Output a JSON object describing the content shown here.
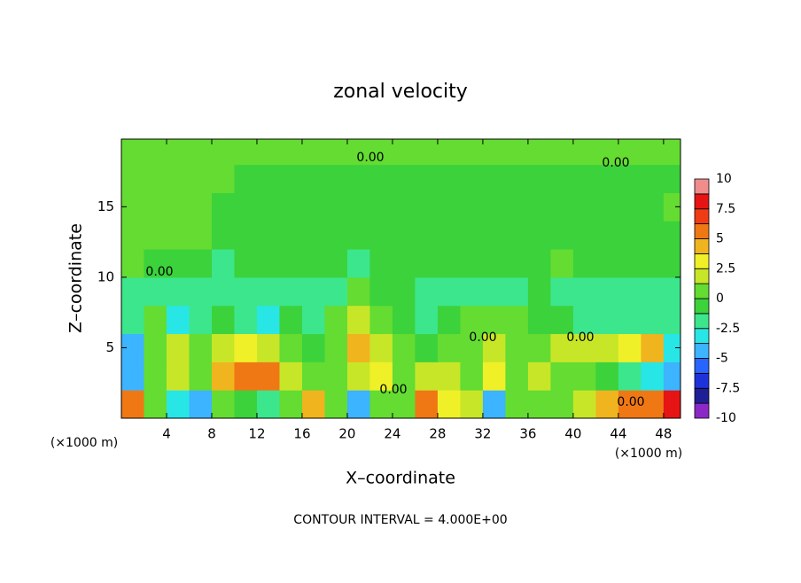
{
  "chart_data": {
    "type": "contour",
    "title": "zonal velocity",
    "x_label": "X–coordinate",
    "y_label": "Z–coordinate",
    "x_unit": "(×1000 m)",
    "y_unit": "(×1000 m)",
    "footer": "CONTOUR INTERVAL = 4.000E+00",
    "contour_labels": [
      "0.00",
      "0.00",
      "0.00",
      "0.00",
      "0.00",
      "0.00",
      "0.00"
    ],
    "xlim": [
      0,
      49.5
    ],
    "ylim": [
      0,
      19.8
    ],
    "xticks": [
      4,
      8,
      12,
      16,
      20,
      24,
      28,
      32,
      36,
      40,
      44,
      48
    ],
    "yticks": [
      5,
      10,
      15
    ],
    "x": [
      1,
      3,
      5,
      7,
      9,
      11,
      13,
      15,
      17,
      19,
      21,
      23,
      25,
      27,
      29,
      31,
      33,
      35,
      37,
      39,
      41,
      43,
      45,
      47,
      49
    ],
    "y": [
      1,
      3,
      5,
      7,
      9,
      11,
      13,
      15,
      17,
      19
    ],
    "z": [
      [
        6,
        1,
        -3,
        -4,
        0,
        -1,
        -2,
        0,
        4,
        0,
        -5,
        0,
        1,
        5,
        3,
        2,
        -4,
        1,
        0,
        1,
        2,
        4,
        5,
        6,
        8
      ],
      [
        -4,
        1,
        1.5,
        1,
        4,
        6,
        5,
        2,
        1,
        1,
        2,
        3,
        1,
        1.5,
        2,
        1,
        3,
        1,
        2,
        0,
        0.5,
        -1,
        -2,
        -3,
        -4
      ],
      [
        -4,
        1,
        2,
        1,
        1.5,
        3,
        2,
        1,
        -1,
        1,
        4,
        2,
        0,
        -0.5,
        1,
        0.5,
        2,
        0,
        1,
        1.5,
        2,
        2,
        3,
        4,
        -3
      ],
      [
        -2,
        0.5,
        -3,
        -1.5,
        -1,
        -1.5,
        -3,
        -1,
        -1.5,
        0.5,
        2,
        1,
        -1,
        -1.5,
        -1,
        0.5,
        0.5,
        0.5,
        -0.5,
        -1,
        -1.5,
        -2,
        -1.5,
        -2,
        -2
      ],
      [
        -1.5,
        -2,
        -2.5,
        -2,
        -1.5,
        -2,
        -1.5,
        -1.5,
        -2,
        -1.5,
        0.5,
        -1,
        -1,
        -1.5,
        -1.5,
        -2,
        -1.5,
        -1.5,
        -1,
        -1.5,
        -1.5,
        -1.5,
        -2,
        -2,
        -2
      ],
      [
        0.5,
        -0.5,
        -1,
        -1,
        -1.5,
        -1,
        -1,
        -1,
        -1,
        -1,
        -1.5,
        -1,
        -1,
        -1,
        -1,
        -1,
        -1,
        -1,
        -1,
        0.5,
        -1,
        -1,
        -1,
        -1,
        -1
      ],
      [
        0.5,
        0.5,
        0.5,
        0.5,
        -0.5,
        -0.5,
        -1,
        -1,
        -1,
        -1,
        -1,
        -1,
        -1,
        -1,
        -1,
        -1,
        -1,
        -1,
        -1,
        -1,
        -1,
        -1,
        -1,
        -1,
        -0.5
      ],
      [
        0.5,
        0.5,
        0.5,
        0.5,
        -0.5,
        -0.5,
        -0.5,
        -0.5,
        -1,
        -1,
        -1,
        -1,
        -1,
        -1,
        -1,
        -1,
        -1,
        -1,
        -1,
        -1,
        -0.5,
        -0.5,
        -0.5,
        -0.5,
        0.5
      ],
      [
        0.5,
        0.5,
        0.5,
        0.5,
        0.5,
        -0.5,
        -0.5,
        -0.5,
        -0.5,
        -0.5,
        -0.5,
        -0.5,
        -0.5,
        -0.5,
        -0.5,
        -0.5,
        -0.5,
        -0.5,
        -0.5,
        -0.5,
        -0.5,
        -0.5,
        -0.5,
        -0.5,
        -0.5
      ],
      [
        0.5,
        0.5,
        0.5,
        0.5,
        0.5,
        0.5,
        0.5,
        0.5,
        0.5,
        0.5,
        0.5,
        0.5,
        0.5,
        0.5,
        0.5,
        0.5,
        0.5,
        0.5,
        0.5,
        0.5,
        0.5,
        0.5,
        0.5,
        0.5,
        0.5
      ]
    ],
    "colorbar": {
      "levels": [
        -10,
        -8.75,
        -7.5,
        -6.25,
        -5,
        -3.75,
        -2.5,
        -1.25,
        0,
        1.25,
        2.5,
        3.75,
        5,
        6.25,
        7.5,
        8.75,
        10
      ],
      "colors": [
        "#8c28c8",
        "#1e1e96",
        "#1e32dc",
        "#2864ff",
        "#3cb4ff",
        "#28e6e6",
        "#3ce68c",
        "#3cd23c",
        "#64dc32",
        "#c8e628",
        "#f0f028",
        "#f0b41e",
        "#f07814",
        "#f03c14",
        "#e61414",
        "#f08c8c"
      ],
      "ticks": [
        -10,
        -7.5,
        -5,
        -2.5,
        0,
        2.5,
        5,
        7.5,
        10
      ]
    }
  }
}
